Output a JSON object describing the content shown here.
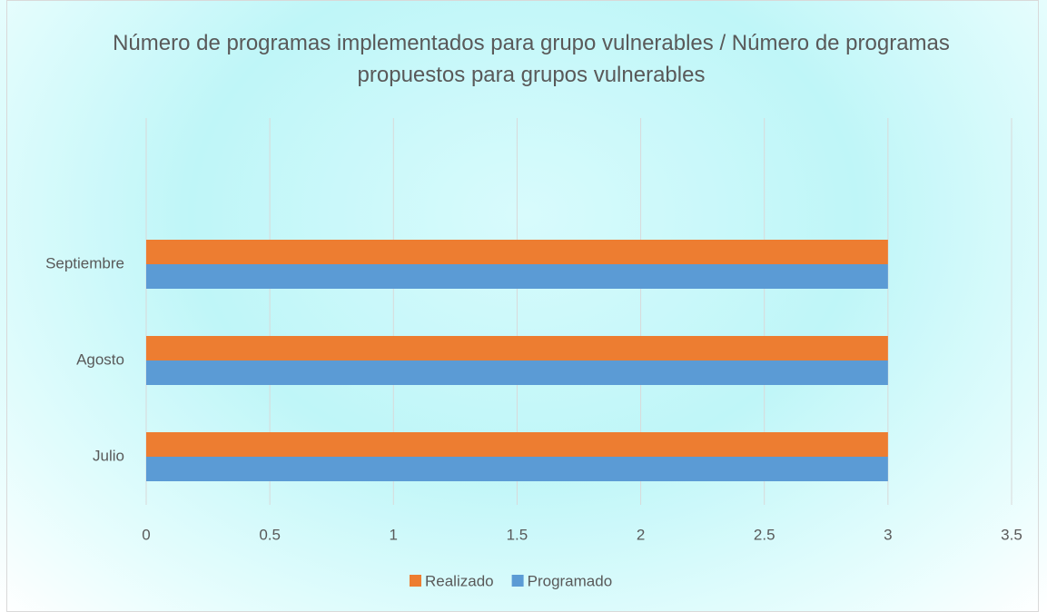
{
  "chart_data": {
    "type": "barh",
    "title": "Número de programas implementados para grupo vulnerables / Número de programas propuestos para grupos vulnerables",
    "categories": [
      "Julio",
      "Agosto",
      "Septiembre"
    ],
    "series": [
      {
        "name": "Realizado",
        "color": "#ed7d31",
        "values": [
          3,
          3,
          3
        ]
      },
      {
        "name": "Programado",
        "color": "#5b9bd5",
        "values": [
          3,
          3,
          3
        ]
      }
    ],
    "xlim": [
      0,
      3.5
    ],
    "xticks": [
      0,
      0.5,
      1,
      1.5,
      2,
      2.5,
      3,
      3.5
    ],
    "grid": true,
    "legend": "bottom"
  }
}
